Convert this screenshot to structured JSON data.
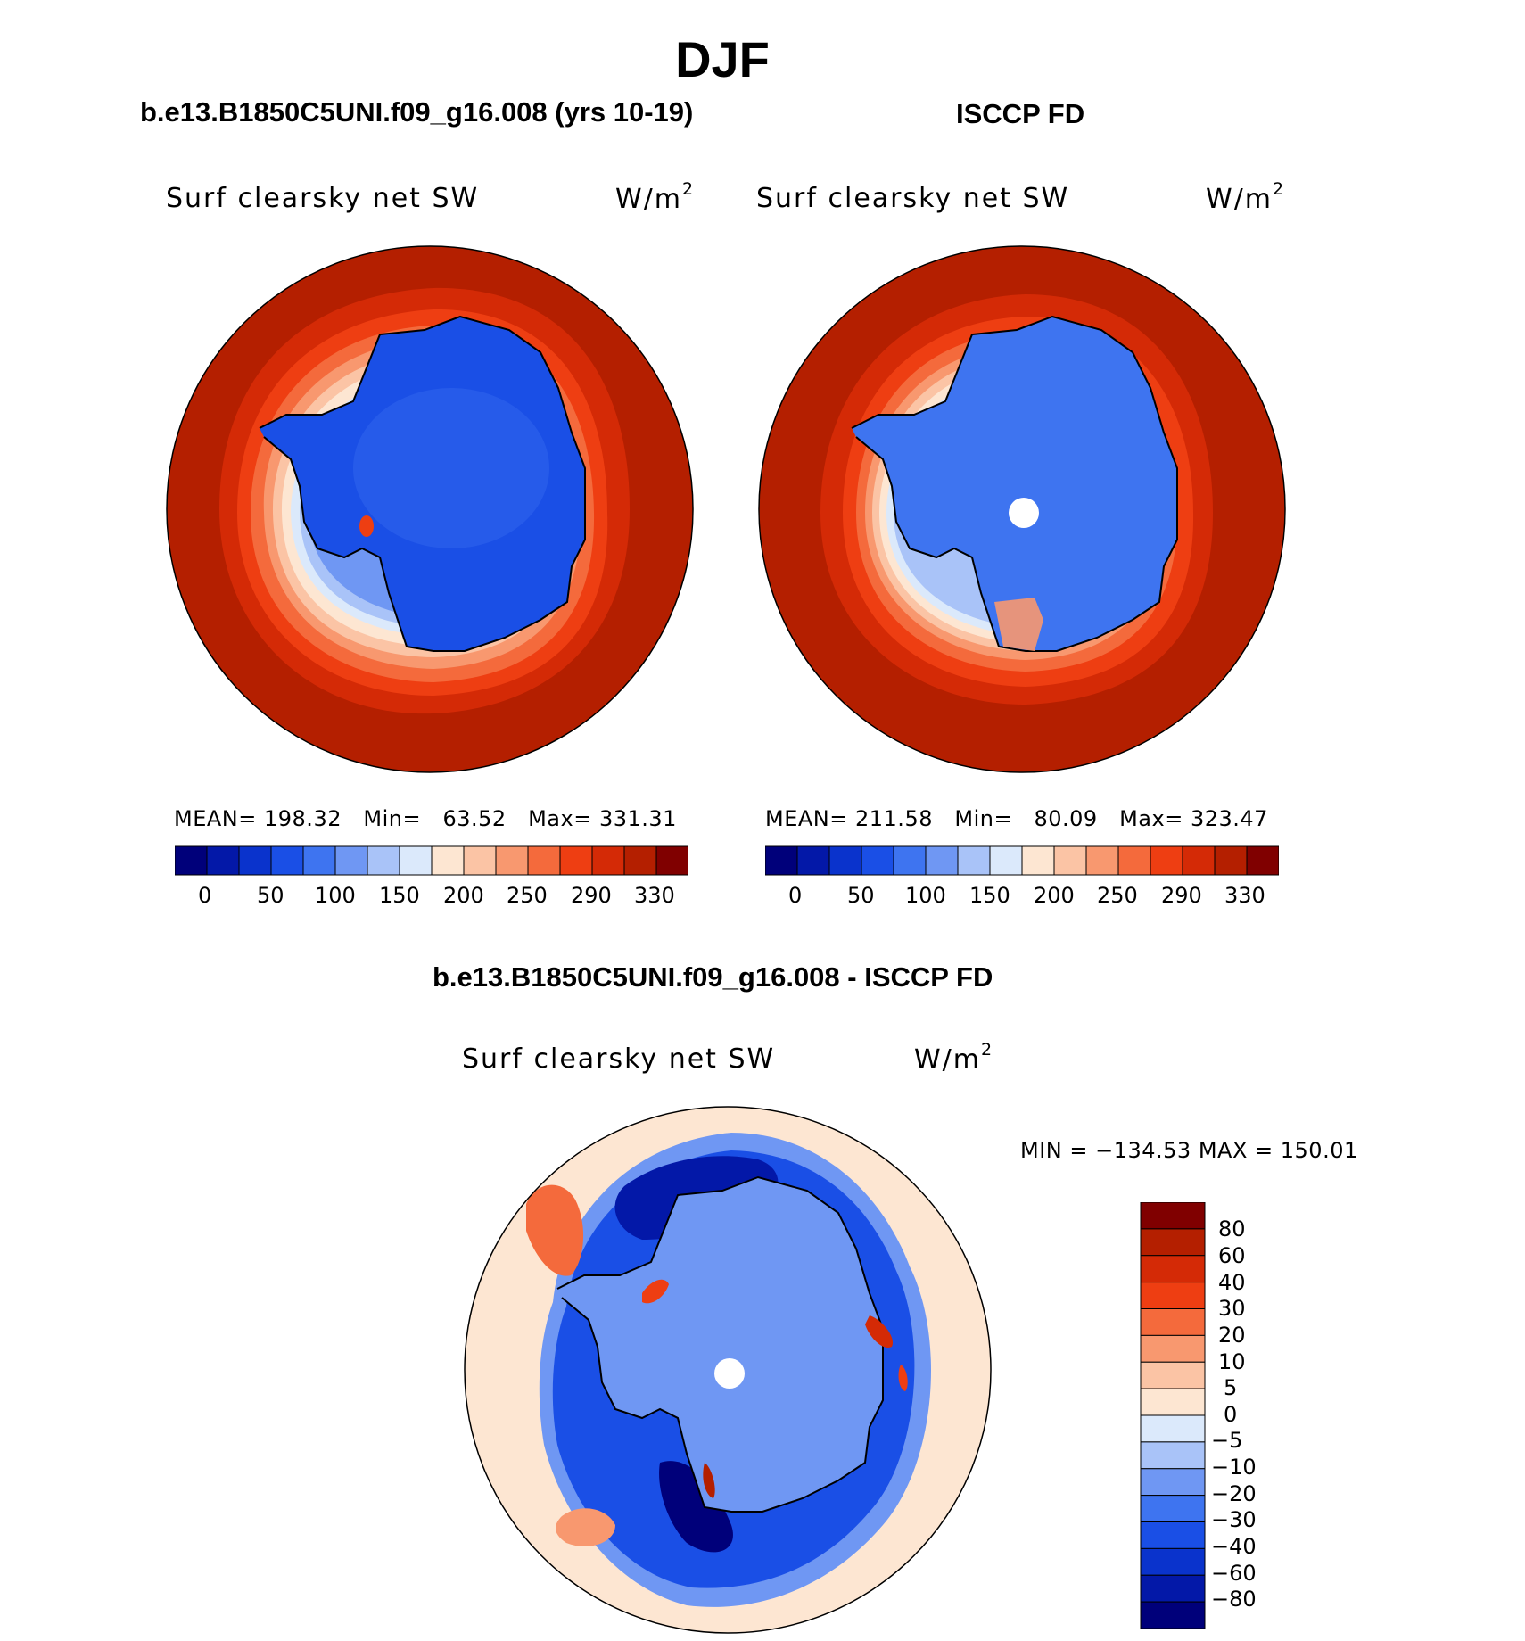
{
  "title": "DJF",
  "panels": [
    {
      "case_title": "b.e13.B1850C5UNI.f09_g16.008 (yrs 10-19)",
      "variable": "Surf clearsky net SW",
      "units": "W/m",
      "units_exp": "2",
      "stats": {
        "mean_label": "MEAN=",
        "mean": "198.32",
        "min_label": "Min=",
        "min": "63.52",
        "max_label": "Max=",
        "max": "331.31"
      }
    },
    {
      "case_title": "ISCCP FD",
      "variable": "Surf clearsky net SW",
      "units": "W/m",
      "units_exp": "2",
      "stats": {
        "mean_label": "MEAN=",
        "mean": "211.58",
        "min_label": "Min=",
        "min": "80.09",
        "max_label": "Max=",
        "max": "323.47"
      }
    }
  ],
  "abs_colorbar": {
    "colors": [
      "#00007a",
      "#0318a8",
      "#0a33cc",
      "#1a4fe6",
      "#3e74f0",
      "#6f97f3",
      "#a9c3f8",
      "#dbe9fb",
      "#fde6d2",
      "#fbc4a5",
      "#f8986f",
      "#f46a3c",
      "#ee3e12",
      "#d42a06",
      "#b41f00",
      "#800000"
    ],
    "tick_labels": [
      "0",
      "50",
      "100",
      "150",
      "200",
      "250",
      "290",
      "330"
    ]
  },
  "diff_panel": {
    "case_title": "b.e13.B1850C5UNI.f09_g16.008 - ISCCP FD",
    "variable": "Surf clearsky net SW",
    "units": "W/m",
    "units_exp": "2",
    "minmax": "MIN = −134.53 MAX = 150.01"
  },
  "diff_colorbar": {
    "colors_top_to_bottom": [
      "#800000",
      "#b41f00",
      "#d42a06",
      "#ee3e12",
      "#f46a3c",
      "#f8986f",
      "#fbc4a5",
      "#fde6d2",
      "#dbe9fb",
      "#a9c3f8",
      "#6f97f3",
      "#3e74f0",
      "#1a4fe6",
      "#0a33cc",
      "#0318a8",
      "#00007a"
    ],
    "tick_labels": [
      "80",
      "60",
      "40",
      "30",
      "20",
      "10",
      "5",
      "0",
      "−5",
      "−10",
      "−20",
      "−30",
      "−40",
      "−60",
      "−80"
    ]
  }
}
